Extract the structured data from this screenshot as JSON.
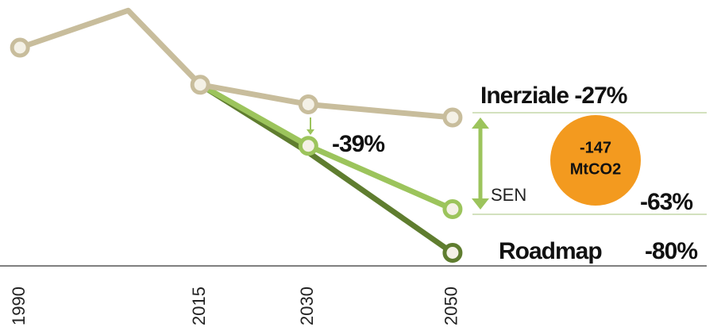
{
  "chart_data": {
    "type": "line",
    "x": [
      1990,
      2005,
      2015,
      2030,
      2050
    ],
    "series": [
      {
        "name": "Inerziale",
        "color": "#c8bd9c",
        "values": [
          100,
          117,
          83,
          74,
          68
        ],
        "markers": [
          true,
          false,
          true,
          true,
          true
        ]
      },
      {
        "name": "SEN",
        "color": "#9cc45c",
        "values": [
          null,
          null,
          83,
          55,
          26
        ],
        "markers": [
          false,
          false,
          false,
          true,
          true
        ]
      },
      {
        "name": "Roadmap",
        "color": "#5f7d2f",
        "values": [
          null,
          null,
          83,
          52,
          6
        ],
        "markers": [
          false,
          false,
          false,
          false,
          true
        ]
      }
    ],
    "xlim": [
      1988,
      2051
    ],
    "xticks": [
      1990,
      2015,
      2030,
      2050
    ],
    "ylim": [
      0,
      120
    ],
    "annotations": [
      "Inerziale -27%",
      "-39%",
      "SEN",
      "-63%",
      "Roadmap",
      "-80%",
      "-147",
      "MtCO2"
    ],
    "highlight_color": "#f39a1f"
  }
}
